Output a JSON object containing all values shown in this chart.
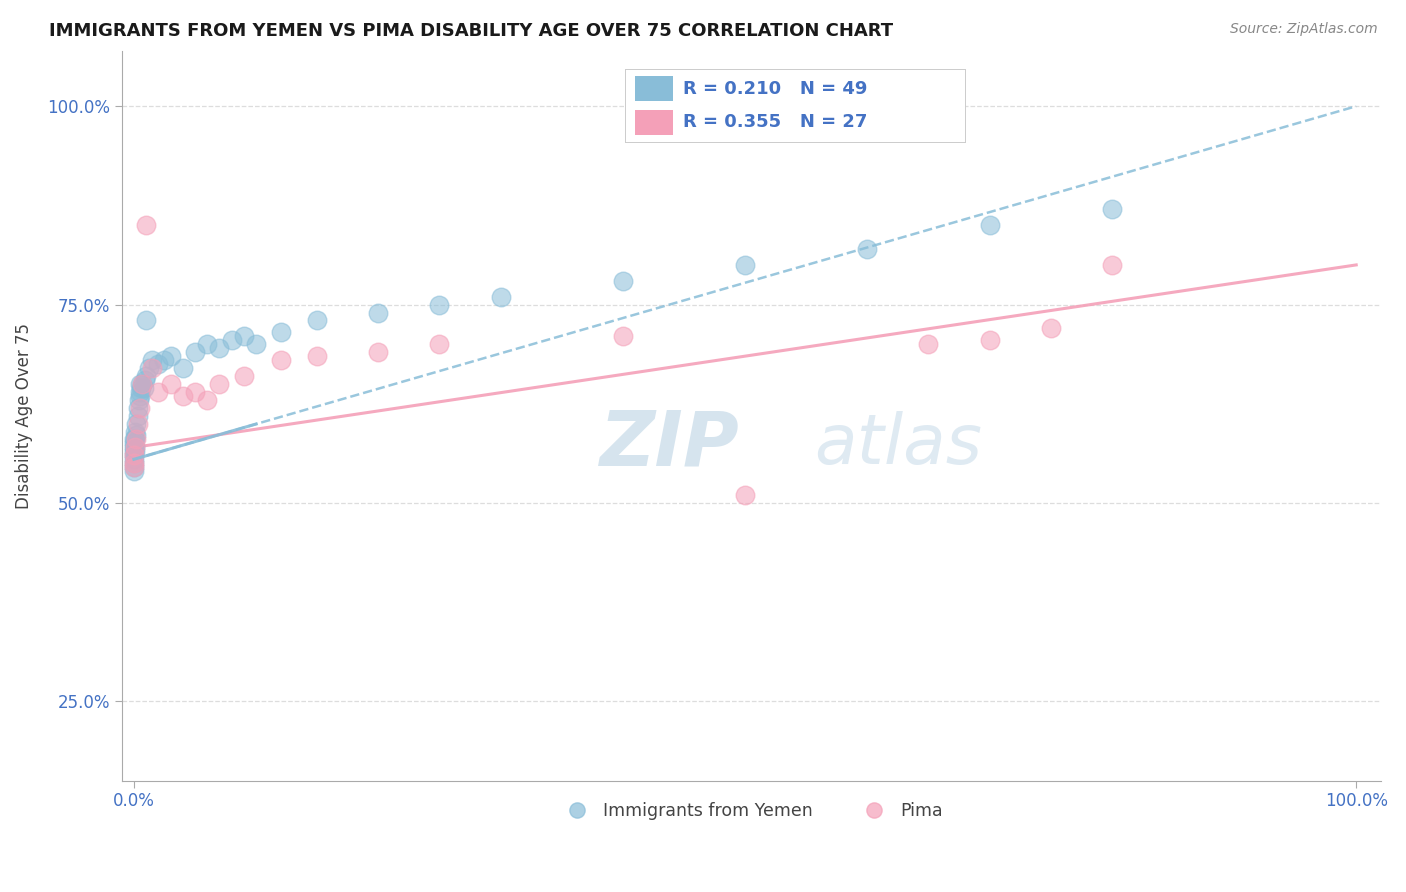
{
  "title": "IMMIGRANTS FROM YEMEN VS PIMA DISABILITY AGE OVER 75 CORRELATION CHART",
  "source": "Source: ZipAtlas.com",
  "ylabel": "Disability Age Over 75",
  "legend1_label": "Immigrants from Yemen",
  "legend2_label": "Pima",
  "r1": "0.210",
  "n1": "49",
  "r2": "0.355",
  "n2": "27",
  "color_blue": "#89bdd8",
  "color_pink": "#f4a0b8",
  "blue_x": [
    0.0,
    0.0,
    0.0,
    0.0,
    0.0,
    0.0,
    0.0,
    0.0,
    0.0,
    0.1,
    0.1,
    0.1,
    0.1,
    0.2,
    0.2,
    0.3,
    0.3,
    0.4,
    0.5,
    0.5,
    0.5,
    0.6,
    0.7,
    0.8,
    0.9,
    1.0,
    1.0,
    1.2,
    1.5,
    2.0,
    2.5,
    3.0,
    4.0,
    5.0,
    6.0,
    7.0,
    8.0,
    9.0,
    10.0,
    12.0,
    15.0,
    20.0,
    25.0,
    30.0,
    40.0,
    50.0,
    60.0,
    70.0,
    80.0
  ],
  "blue_y": [
    56.0,
    56.5,
    57.0,
    57.5,
    58.0,
    55.0,
    54.5,
    54.0,
    55.5,
    57.0,
    58.0,
    59.0,
    56.5,
    60.0,
    58.5,
    62.0,
    61.0,
    63.0,
    65.0,
    64.0,
    63.5,
    64.5,
    65.0,
    64.5,
    65.5,
    66.0,
    73.0,
    67.0,
    68.0,
    67.5,
    68.0,
    68.5,
    67.0,
    69.0,
    70.0,
    69.5,
    70.5,
    71.0,
    70.0,
    71.5,
    73.0,
    74.0,
    75.0,
    76.0,
    78.0,
    80.0,
    82.0,
    85.0,
    87.0
  ],
  "pink_x": [
    0.0,
    0.0,
    0.0,
    0.1,
    0.2,
    0.3,
    0.5,
    0.7,
    1.0,
    1.5,
    2.0,
    3.0,
    4.0,
    5.0,
    6.0,
    7.0,
    9.0,
    12.0,
    15.0,
    20.0,
    25.0,
    40.0,
    50.0,
    65.0,
    70.0,
    75.0,
    80.0
  ],
  "pink_y": [
    56.0,
    55.0,
    54.5,
    57.0,
    58.0,
    60.0,
    62.0,
    65.0,
    85.0,
    67.0,
    64.0,
    65.0,
    63.5,
    64.0,
    63.0,
    65.0,
    66.0,
    68.0,
    68.5,
    69.0,
    70.0,
    71.0,
    51.0,
    70.0,
    70.5,
    72.0,
    80.0
  ],
  "blue_line_x": [
    0,
    100
  ],
  "blue_line_y": [
    55.5,
    100.0
  ],
  "pink_line_x": [
    0,
    100
  ],
  "pink_line_y": [
    57.0,
    80.0
  ],
  "ylim": [
    15,
    107
  ],
  "xlim": [
    -1,
    102
  ],
  "ytick_positions": [
    25.0,
    50.0,
    75.0,
    100.0
  ],
  "ytick_labels": [
    "25.0%",
    "50.0%",
    "75.0%",
    "100.0%"
  ],
  "xtick_positions": [
    0,
    100
  ],
  "xtick_labels": [
    "0.0%",
    "100.0%"
  ],
  "title_color": "#1a1a1a",
  "source_color": "#888888",
  "tick_color": "#4472c4",
  "watermark_color": "#c5d9e8",
  "grid_color": "#dddddd"
}
